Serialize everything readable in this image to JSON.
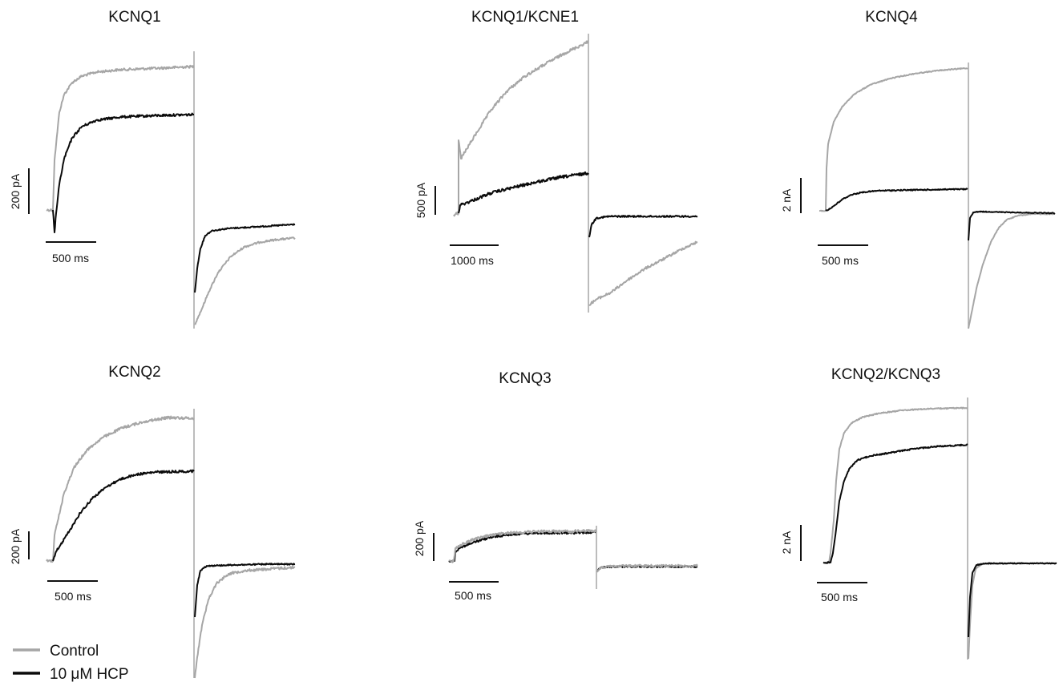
{
  "colors": {
    "control": "#a6a6a6",
    "hcp": "#0a0a0a",
    "scalebar": "#111111"
  },
  "legend": [
    {
      "label": "Control",
      "color": "#a6a6a6"
    },
    {
      "label": "10 μM HCP",
      "color": "#0a0a0a"
    }
  ],
  "panels": [
    {
      "id": "kcnq1",
      "title": "KCNQ1",
      "amp_label": "200 pA",
      "time_label": "500 ms"
    },
    {
      "id": "kcnq1-kcne1",
      "title": "KCNQ1/KCNE1",
      "amp_label": "500 pA",
      "time_label": "1000 ms"
    },
    {
      "id": "kcnq4",
      "title": "KCNQ4",
      "amp_label": "2 nA",
      "time_label": "500 ms"
    },
    {
      "id": "kcnq2",
      "title": "KCNQ2",
      "amp_label": "200 pA",
      "time_label": "500 ms"
    },
    {
      "id": "kcnq3",
      "title": "KCNQ3",
      "amp_label": "200 pA",
      "time_label": "500 ms"
    },
    {
      "id": "kcnq2-kcnq3",
      "title": "KCNQ2/KCNQ3",
      "amp_label": "2 nA",
      "time_label": "500 ms"
    }
  ]
}
